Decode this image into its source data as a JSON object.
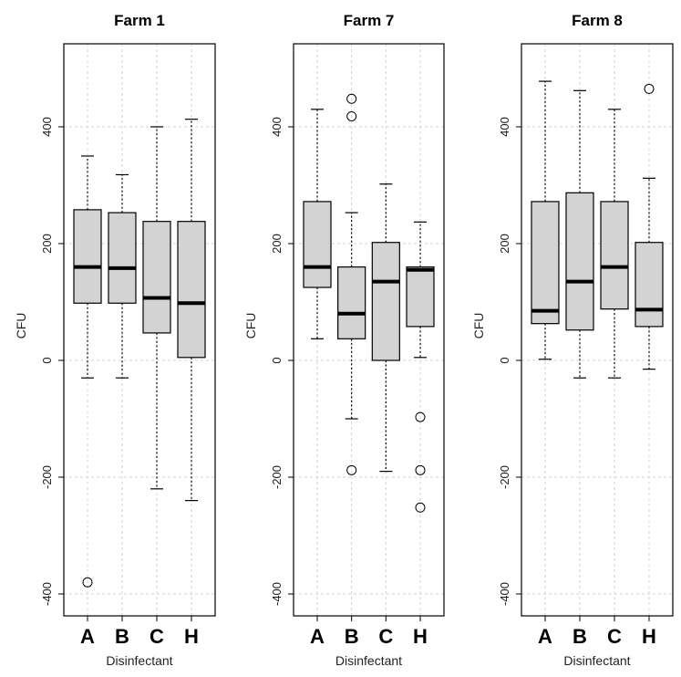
{
  "chart_data": [
    {
      "type": "boxplot",
      "title": "Farm 1",
      "xlabel": "Disinfectant",
      "ylabel": "CFU",
      "ylim": [
        -400,
        530
      ],
      "yticks": [
        -400,
        -200,
        0,
        200,
        400
      ],
      "categories": [
        "A",
        "B",
        "C",
        "H"
      ],
      "boxes": [
        {
          "name": "A",
          "min": -30,
          "q1": 98,
          "median": 160,
          "q3": 258,
          "max": 350,
          "outliers": [
            -380
          ]
        },
        {
          "name": "B",
          "min": -30,
          "q1": 98,
          "median": 158,
          "q3": 253,
          "max": 318,
          "outliers": []
        },
        {
          "name": "C",
          "min": -220,
          "q1": 47,
          "median": 107,
          "q3": 238,
          "max": 400,
          "outliers": []
        },
        {
          "name": "H",
          "min": -240,
          "q1": 5,
          "median": 98,
          "q3": 238,
          "max": 413,
          "outliers": []
        }
      ]
    },
    {
      "type": "boxplot",
      "title": "Farm 7",
      "xlabel": "Disinfectant",
      "ylabel": "CFU",
      "ylim": [
        -400,
        530
      ],
      "yticks": [
        -400,
        -200,
        0,
        200,
        400
      ],
      "categories": [
        "A",
        "B",
        "C",
        "H"
      ],
      "boxes": [
        {
          "name": "A",
          "min": 37,
          "q1": 125,
          "median": 160,
          "q3": 272,
          "max": 430,
          "outliers": []
        },
        {
          "name": "B",
          "min": -100,
          "q1": 37,
          "median": 80,
          "q3": 160,
          "max": 253,
          "outliers": [
            448,
            418,
            -188
          ]
        },
        {
          "name": "C",
          "min": -190,
          "q1": 0,
          "median": 135,
          "q3": 202,
          "max": 302,
          "outliers": []
        },
        {
          "name": "H",
          "min": 5,
          "q1": 58,
          "median": 155,
          "q3": 160,
          "max": 237,
          "outliers": [
            -97,
            -188,
            -252
          ]
        }
      ]
    },
    {
      "type": "boxplot",
      "title": "Farm 8",
      "xlabel": "Disinfectant",
      "ylabel": "CFU",
      "ylim": [
        -400,
        530
      ],
      "yticks": [
        -400,
        -200,
        0,
        200,
        400
      ],
      "categories": [
        "A",
        "B",
        "C",
        "H"
      ],
      "boxes": [
        {
          "name": "A",
          "min": 2,
          "q1": 63,
          "median": 85,
          "q3": 272,
          "max": 478,
          "outliers": []
        },
        {
          "name": "B",
          "min": -30,
          "q1": 52,
          "median": 135,
          "q3": 287,
          "max": 462,
          "outliers": []
        },
        {
          "name": "C",
          "min": -30,
          "q1": 88,
          "median": 160,
          "q3": 272,
          "max": 430,
          "outliers": []
        },
        {
          "name": "H",
          "min": -15,
          "q1": 58,
          "median": 87,
          "q3": 202,
          "max": 312,
          "outliers": [
            465
          ]
        }
      ]
    }
  ]
}
